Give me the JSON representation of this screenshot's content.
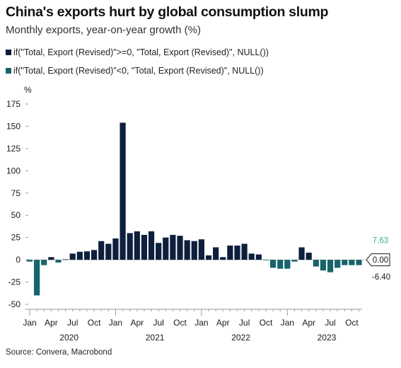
{
  "header": {
    "title": "China's exports hurt by global consumption slump",
    "subtitle": "Monthly exports, year-on-year growth (%)"
  },
  "source": "Source: Convera, Macrobond",
  "colors": {
    "positive": "#0d1f3c",
    "negative": "#17646b",
    "text": "#1a1a1a",
    "axis": "#999999",
    "label_box_border": "#1a1a1a",
    "top_label": "#3aaa9a"
  },
  "chart_data": {
    "type": "bar",
    "title": "China's exports hurt by global consumption slump",
    "subtitle": "Monthly exports, year-on-year growth (%)",
    "ylabel": "%",
    "ylim": [
      -50,
      175
    ],
    "yticks": [
      -50,
      -25,
      0,
      25,
      50,
      75,
      100,
      125,
      150,
      175
    ],
    "grid": false,
    "legend_position": "top-left",
    "series": [
      {
        "name": "if(\"Total, Export (Revised)\">=0, \"Total, Export (Revised)\", NULL())",
        "color": "#0d1f3c",
        "rule": "value >= 0"
      },
      {
        "name": "if(\"Total, Export (Revised)\"<0, \"Total, Export (Revised)\", NULL())",
        "color": "#17646b",
        "rule": "value < 0"
      }
    ],
    "x": [
      "2020-01",
      "2020-02",
      "2020-03",
      "2020-04",
      "2020-05",
      "2020-06",
      "2020-07",
      "2020-08",
      "2020-09",
      "2020-10",
      "2020-11",
      "2020-12",
      "2021-01",
      "2021-02",
      "2021-03",
      "2021-04",
      "2021-05",
      "2021-06",
      "2021-07",
      "2021-08",
      "2021-09",
      "2021-10",
      "2021-11",
      "2021-12",
      "2022-01",
      "2022-02",
      "2022-03",
      "2022-04",
      "2022-05",
      "2022-06",
      "2022-07",
      "2022-08",
      "2022-09",
      "2022-10",
      "2022-11",
      "2022-12",
      "2023-01",
      "2023-02",
      "2023-03",
      "2023-04",
      "2023-05",
      "2023-06",
      "2023-07",
      "2023-08",
      "2023-09",
      "2023-10",
      "2023-11"
    ],
    "values": [
      -2,
      -40,
      -6,
      3,
      -3,
      0.5,
      7,
      9,
      9.5,
      11,
      21,
      18,
      24,
      154,
      30,
      32,
      28,
      32,
      19,
      25,
      28,
      27,
      22,
      21,
      23,
      5,
      14,
      3,
      16,
      16,
      18,
      7,
      6,
      -0.5,
      -9,
      -10,
      -10,
      -2,
      14,
      8,
      -7.5,
      -12,
      -14,
      -9,
      -6,
      -6,
      -6
    ],
    "x_tick_labels": [
      "Jan",
      "Apr",
      "Jul",
      "Oct",
      "Jan",
      "Apr",
      "Jul",
      "Oct",
      "Jan",
      "Apr",
      "Jul",
      "Oct",
      "Jan",
      "Apr",
      "Jul",
      "Oct"
    ],
    "x_tick_months": [
      "2020-01",
      "2020-04",
      "2020-07",
      "2020-10",
      "2021-01",
      "2021-04",
      "2021-07",
      "2021-10",
      "2022-01",
      "2022-04",
      "2022-07",
      "2022-10",
      "2023-01",
      "2023-04",
      "2023-07",
      "2023-10"
    ],
    "year_labels": [
      "2020",
      "2021",
      "2022",
      "2023"
    ],
    "annotations": [
      {
        "text": "7.63",
        "value": 7.63,
        "style": "plain"
      },
      {
        "text": "0.00",
        "value": 0,
        "style": "boxed"
      },
      {
        "text": "-6.40",
        "value": -6.4,
        "style": "plain"
      }
    ]
  }
}
